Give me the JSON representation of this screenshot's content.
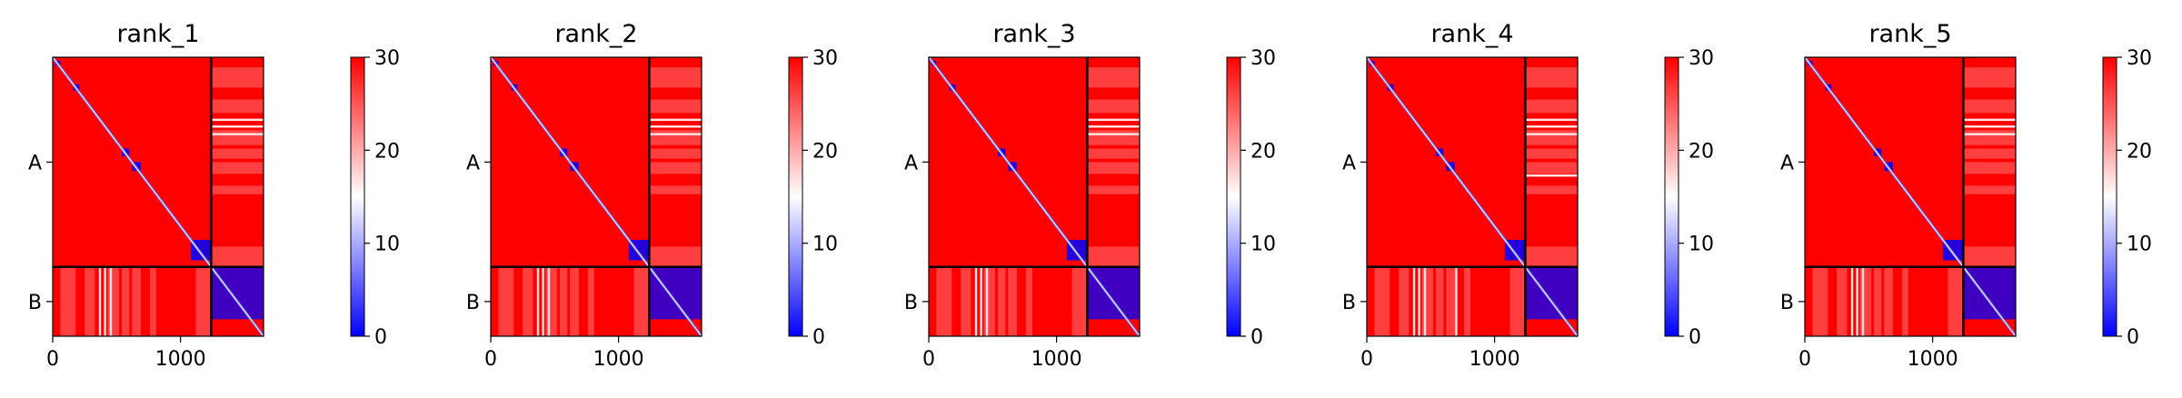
{
  "figure": {
    "colors": {
      "low": "#0000ff",
      "mid": "#ffffff",
      "high": "#ff0000",
      "divider": "#000000"
    },
    "colormap": "bwr"
  },
  "chart_data": [
    {
      "type": "heatmap",
      "title": "rank_1",
      "xticks": [
        0,
        1000
      ],
      "xlim": [
        0,
        1650
      ],
      "yticklabels": [
        "A",
        "B"
      ],
      "chain_lengths": [
        1240,
        410
      ],
      "chain_boundary": 1240,
      "colorbar": {
        "min": 0,
        "max": 30,
        "ticks": [
          0,
          10,
          20,
          30
        ]
      },
      "low_blocks": [
        [
          20,
          60
        ],
        [
          160,
          210
        ],
        [
          540,
          600
        ],
        [
          620,
          690
        ],
        [
          1080,
          1240
        ],
        [
          1240,
          1650
        ]
      ],
      "stripes": {
        "bands": [
          370,
          410,
          455
        ],
        "top_ranges": [
          [
            60,
            180
          ],
          [
            250,
            330
          ],
          [
            430,
            520
          ],
          [
            540,
            600
          ],
          [
            620,
            690
          ],
          [
            760,
            810
          ],
          [
            1120,
            1240
          ]
        ]
      }
    },
    {
      "type": "heatmap",
      "title": "rank_2",
      "xticks": [
        0,
        1000
      ],
      "xlim": [
        0,
        1650
      ],
      "yticklabels": [
        "A",
        "B"
      ],
      "chain_lengths": [
        1240,
        410
      ],
      "chain_boundary": 1240,
      "colorbar": {
        "min": 0,
        "max": 30,
        "ticks": [
          0,
          10,
          20,
          30
        ]
      },
      "low_blocks": [
        [
          20,
          60
        ],
        [
          160,
          210
        ],
        [
          540,
          600
        ],
        [
          620,
          690
        ],
        [
          1080,
          1240
        ],
        [
          1240,
          1650
        ]
      ],
      "stripes": {
        "bands": [
          370,
          410,
          455
        ],
        "top_ranges": [
          [
            60,
            180
          ],
          [
            250,
            330
          ],
          [
            430,
            520
          ],
          [
            540,
            600
          ],
          [
            620,
            690
          ],
          [
            760,
            810
          ],
          [
            1120,
            1240
          ]
        ]
      }
    },
    {
      "type": "heatmap",
      "title": "rank_3",
      "xticks": [
        0,
        1000
      ],
      "xlim": [
        0,
        1650
      ],
      "yticklabels": [
        "A",
        "B"
      ],
      "chain_lengths": [
        1240,
        410
      ],
      "chain_boundary": 1240,
      "colorbar": {
        "min": 0,
        "max": 30,
        "ticks": [
          0,
          10,
          20,
          30
        ]
      },
      "low_blocks": [
        [
          20,
          60
        ],
        [
          160,
          210
        ],
        [
          540,
          600
        ],
        [
          620,
          690
        ],
        [
          1080,
          1240
        ],
        [
          1240,
          1650
        ]
      ],
      "stripes": {
        "bands": [
          370,
          410,
          455
        ],
        "top_ranges": [
          [
            60,
            180
          ],
          [
            250,
            330
          ],
          [
            430,
            520
          ],
          [
            540,
            600
          ],
          [
            620,
            690
          ],
          [
            760,
            810
          ],
          [
            1120,
            1240
          ]
        ]
      }
    },
    {
      "type": "heatmap",
      "title": "rank_4",
      "xticks": [
        0,
        1000
      ],
      "xlim": [
        0,
        1650
      ],
      "yticklabels": [
        "A",
        "B"
      ],
      "chain_lengths": [
        1240,
        410
      ],
      "chain_boundary": 1240,
      "colorbar": {
        "min": 0,
        "max": 30,
        "ticks": [
          0,
          10,
          20,
          30
        ]
      },
      "low_blocks": [
        [
          20,
          60
        ],
        [
          160,
          210
        ],
        [
          540,
          600
        ],
        [
          620,
          690
        ],
        [
          1080,
          1240
        ],
        [
          1240,
          1650
        ]
      ],
      "stripes": {
        "bands": [
          370,
          410,
          455,
          700
        ],
        "top_ranges": [
          [
            60,
            180
          ],
          [
            250,
            330
          ],
          [
            430,
            520
          ],
          [
            540,
            600
          ],
          [
            620,
            690
          ],
          [
            760,
            810
          ],
          [
            1120,
            1240
          ]
        ]
      }
    },
    {
      "type": "heatmap",
      "title": "rank_5",
      "xticks": [
        0,
        1000
      ],
      "xlim": [
        0,
        1650
      ],
      "yticklabels": [
        "A",
        "B"
      ],
      "chain_lengths": [
        1240,
        410
      ],
      "chain_boundary": 1240,
      "colorbar": {
        "min": 0,
        "max": 30,
        "ticks": [
          0,
          10,
          20,
          30
        ]
      },
      "low_blocks": [
        [
          20,
          60
        ],
        [
          160,
          210
        ],
        [
          540,
          600
        ],
        [
          620,
          690
        ],
        [
          1080,
          1240
        ],
        [
          1240,
          1650
        ]
      ],
      "stripes": {
        "bands": [
          370,
          410,
          455
        ],
        "top_ranges": [
          [
            60,
            180
          ],
          [
            250,
            330
          ],
          [
            430,
            520
          ],
          [
            540,
            600
          ],
          [
            620,
            690
          ],
          [
            760,
            810
          ],
          [
            1120,
            1240
          ]
        ]
      }
    }
  ]
}
